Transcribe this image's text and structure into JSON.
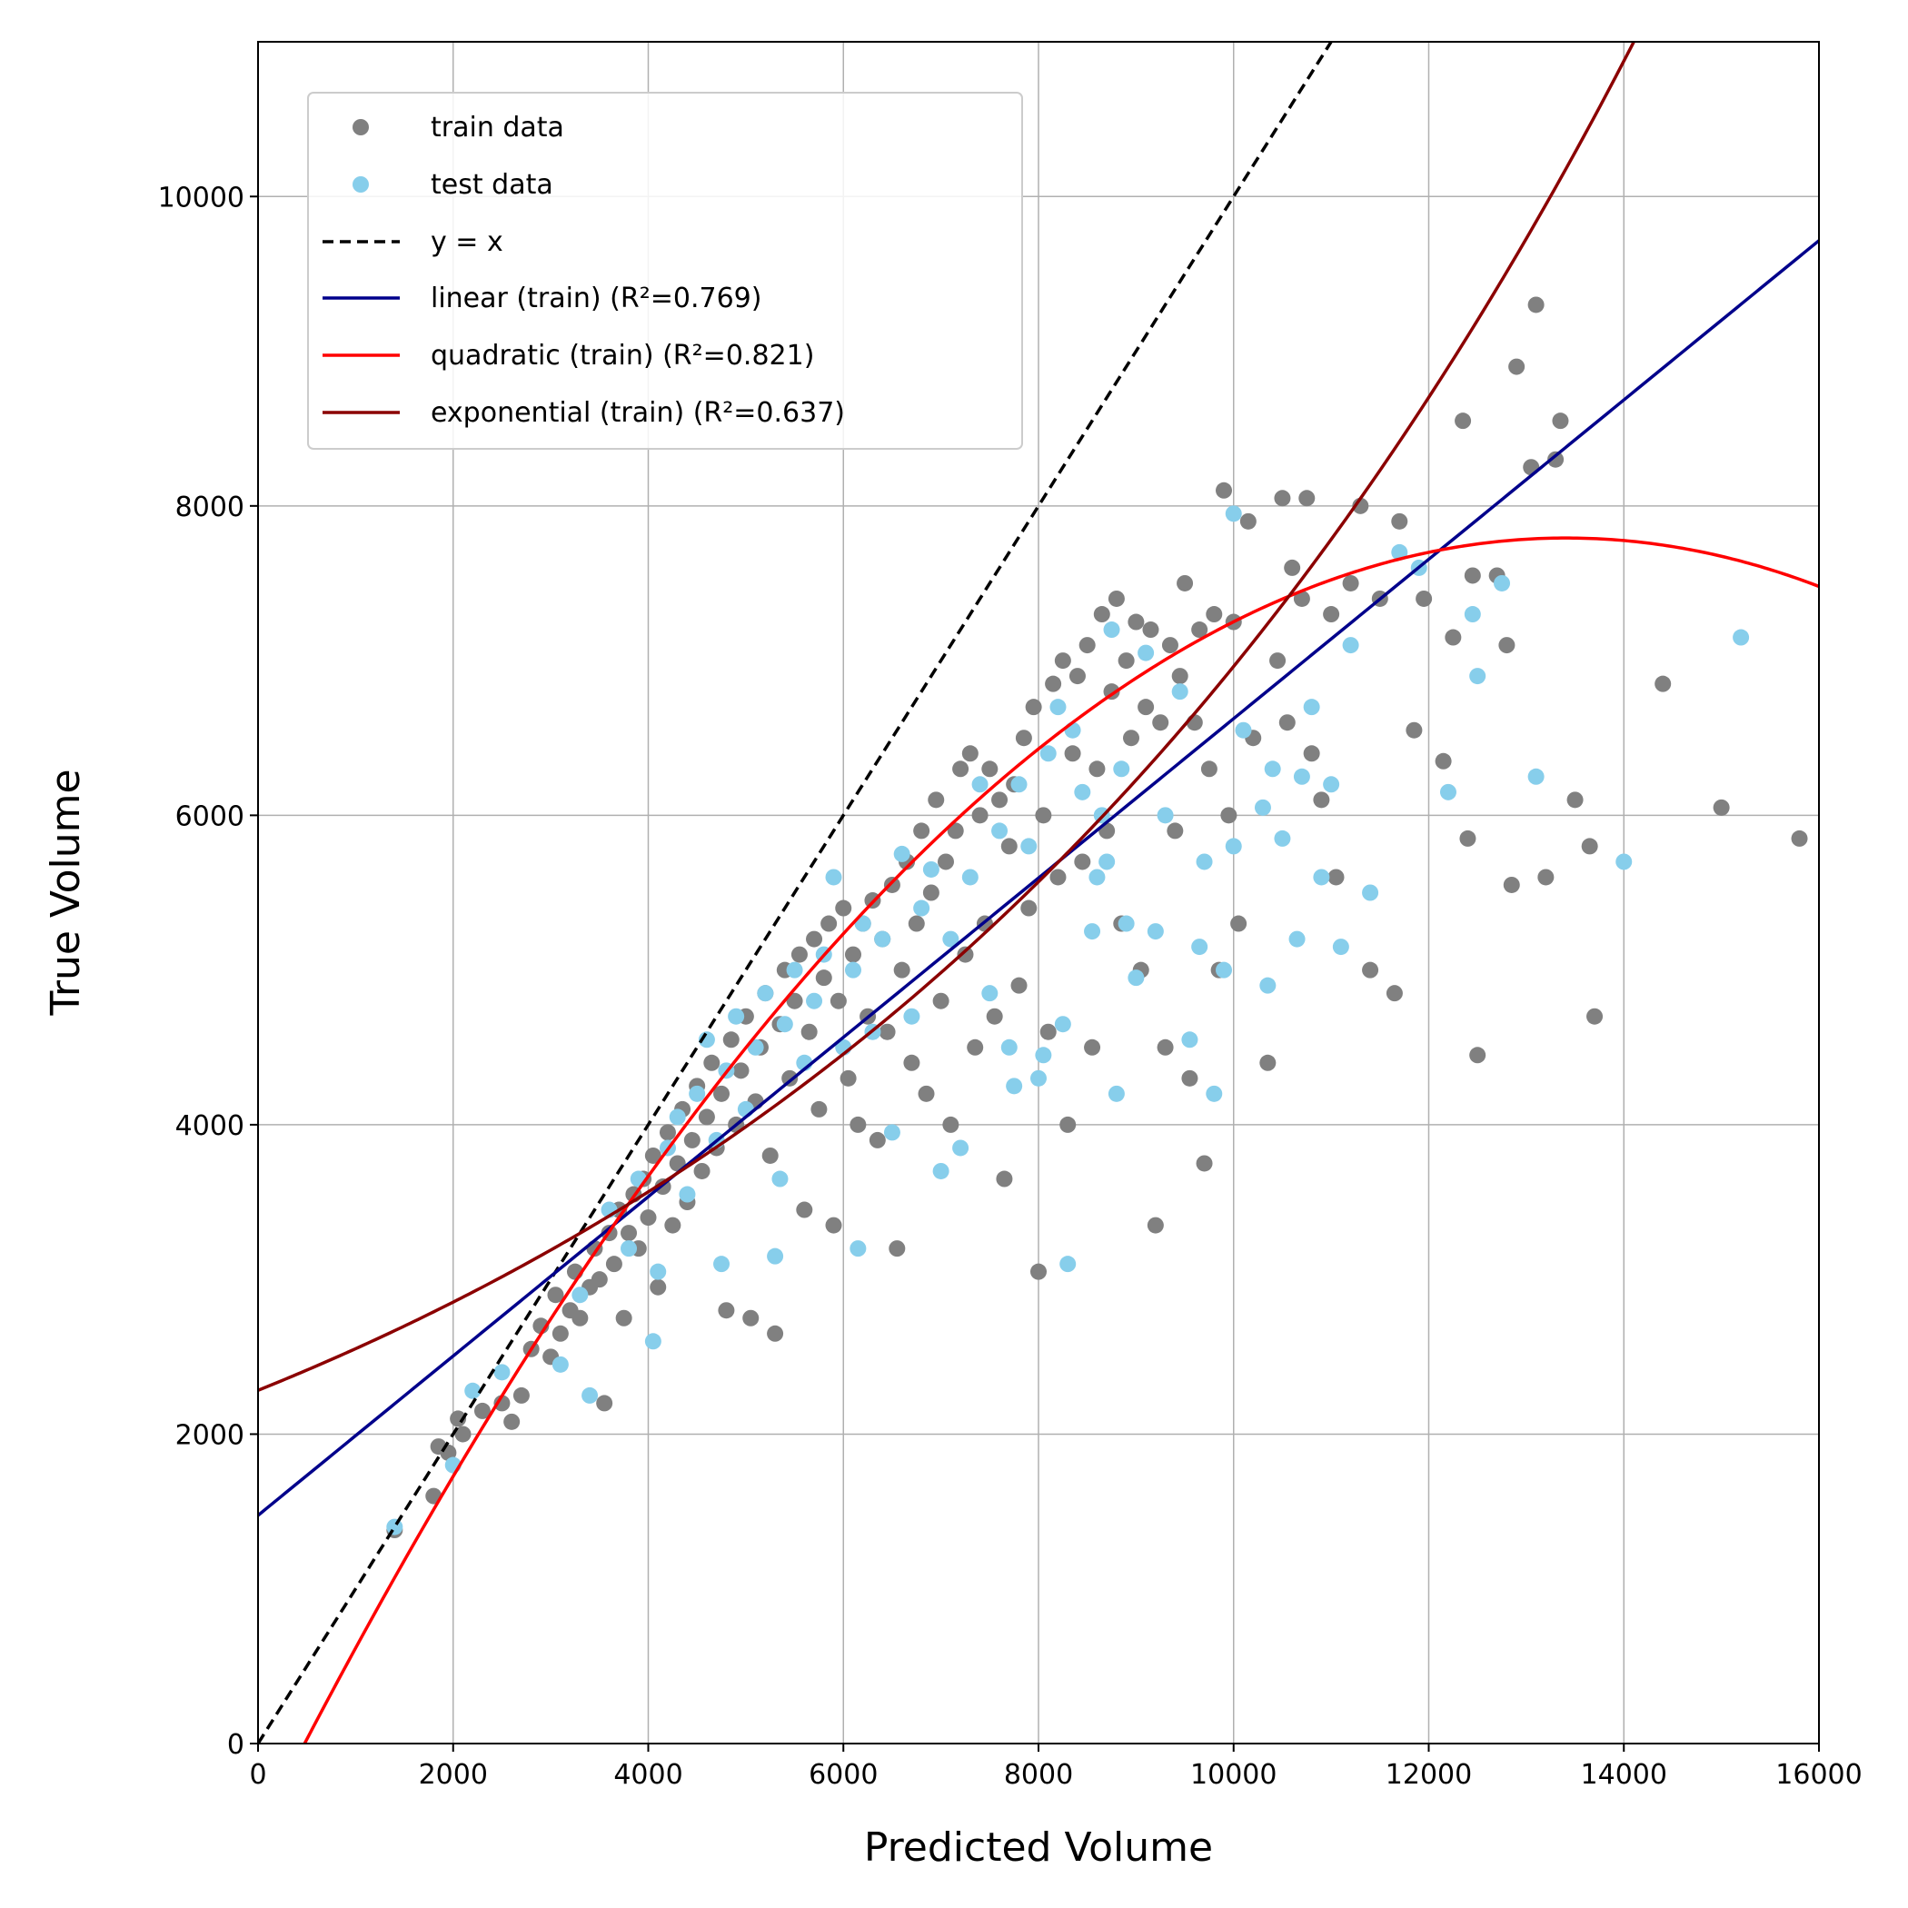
{
  "chart_data": {
    "type": "scatter",
    "xlabel": "Predicted Volume",
    "ylabel": "True Volume",
    "xlim": [
      0,
      16000
    ],
    "ylim": [
      0,
      11000
    ],
    "xticks": [
      "0",
      "2000",
      "4000",
      "6000",
      "8000",
      "10000",
      "12000",
      "14000",
      "16000"
    ],
    "yticks": [
      "0",
      "2000",
      "4000",
      "6000",
      "8000",
      "10000"
    ],
    "grid": true,
    "legend_position": "top-left",
    "legend": {
      "train": "train data",
      "test": "test data",
      "identity": "y = x",
      "linear": "linear (train) (R²=0.769)",
      "quadratic": "quadratic (train) (R²=0.821)",
      "exponential": "exponential (train) (R²=0.637)"
    },
    "colors": {
      "train": "#808080",
      "test": "#87ceeb",
      "identity": "#000000",
      "linear": "#00008b",
      "quadratic": "#ff0000",
      "exponential": "#8b0000",
      "grid": "#b0b0b0"
    },
    "fits": {
      "identity": {
        "slope": 1,
        "intercept": 0
      },
      "linear": {
        "slope": 0.515,
        "intercept": 1475
      },
      "quadratic": {
        "a": -4.66e-05,
        "b": 1.2497,
        "c": -586
      },
      "exponential": {
        "a": 2283,
        "k": 0.0001115
      }
    },
    "train_points": [
      [
        1400,
        1380
      ],
      [
        1800,
        1600
      ],
      [
        1850,
        1920
      ],
      [
        1950,
        1880
      ],
      [
        2050,
        2100
      ],
      [
        2100,
        2000
      ],
      [
        2300,
        2150
      ],
      [
        2500,
        2200
      ],
      [
        2600,
        2080
      ],
      [
        2700,
        2250
      ],
      [
        2800,
        2550
      ],
      [
        2900,
        2700
      ],
      [
        3000,
        2500
      ],
      [
        3050,
        2900
      ],
      [
        3100,
        2650
      ],
      [
        3200,
        2800
      ],
      [
        3250,
        3050
      ],
      [
        3300,
        2750
      ],
      [
        3400,
        2950
      ],
      [
        3450,
        3200
      ],
      [
        3500,
        3000
      ],
      [
        3550,
        2200
      ],
      [
        3600,
        3300
      ],
      [
        3650,
        3100
      ],
      [
        3700,
        3450
      ],
      [
        3750,
        2750
      ],
      [
        3800,
        3300
      ],
      [
        3850,
        3550
      ],
      [
        3900,
        3200
      ],
      [
        3950,
        3650
      ],
      [
        4000,
        3400
      ],
      [
        4050,
        3800
      ],
      [
        4100,
        2950
      ],
      [
        4150,
        3600
      ],
      [
        4200,
        3950
      ],
      [
        4250,
        3350
      ],
      [
        4300,
        3750
      ],
      [
        4350,
        4100
      ],
      [
        4400,
        3500
      ],
      [
        4450,
        3900
      ],
      [
        4500,
        4250
      ],
      [
        4550,
        3700
      ],
      [
        4600,
        4050
      ],
      [
        4650,
        4400
      ],
      [
        4700,
        3850
      ],
      [
        4750,
        4200
      ],
      [
        4800,
        2800
      ],
      [
        4850,
        4550
      ],
      [
        4900,
        4000
      ],
      [
        4950,
        4350
      ],
      [
        5000,
        4700
      ],
      [
        5050,
        2750
      ],
      [
        5100,
        4150
      ],
      [
        5150,
        4500
      ],
      [
        5200,
        4850
      ],
      [
        5250,
        3800
      ],
      [
        5300,
        2650
      ],
      [
        5350,
        4650
      ],
      [
        5400,
        5000
      ],
      [
        5450,
        4300
      ],
      [
        5500,
        4800
      ],
      [
        5550,
        5100
      ],
      [
        5600,
        3450
      ],
      [
        5650,
        4600
      ],
      [
        5700,
        5200
      ],
      [
        5750,
        4100
      ],
      [
        5800,
        4950
      ],
      [
        5850,
        5300
      ],
      [
        5900,
        3350
      ],
      [
        5950,
        4800
      ],
      [
        6000,
        5400
      ],
      [
        6050,
        4300
      ],
      [
        6100,
        5100
      ],
      [
        6150,
        4000
      ],
      [
        6200,
        5300
      ],
      [
        6250,
        4700
      ],
      [
        6300,
        5450
      ],
      [
        6350,
        3900
      ],
      [
        6400,
        5200
      ],
      [
        6450,
        4600
      ],
      [
        6500,
        5550
      ],
      [
        6550,
        3200
      ],
      [
        6600,
        5000
      ],
      [
        6650,
        5700
      ],
      [
        6700,
        4400
      ],
      [
        6750,
        5300
      ],
      [
        6800,
        5900
      ],
      [
        6850,
        4200
      ],
      [
        6900,
        5500
      ],
      [
        6950,
        6100
      ],
      [
        7000,
        4800
      ],
      [
        7050,
        5700
      ],
      [
        7100,
        4000
      ],
      [
        7150,
        5900
      ],
      [
        7200,
        6300
      ],
      [
        7250,
        5100
      ],
      [
        7300,
        6400
      ],
      [
        7350,
        4500
      ],
      [
        7400,
        6000
      ],
      [
        7450,
        5300
      ],
      [
        7500,
        6300
      ],
      [
        7550,
        4700
      ],
      [
        7600,
        6100
      ],
      [
        7650,
        3650
      ],
      [
        7700,
        5800
      ],
      [
        7750,
        6200
      ],
      [
        7800,
        4900
      ],
      [
        7850,
        6500
      ],
      [
        7900,
        5400
      ],
      [
        7950,
        6700
      ],
      [
        8000,
        3050
      ],
      [
        8050,
        6000
      ],
      [
        8100,
        4600
      ],
      [
        8150,
        6850
      ],
      [
        8200,
        5600
      ],
      [
        8250,
        7000
      ],
      [
        8300,
        4000
      ],
      [
        8350,
        6400
      ],
      [
        8400,
        6900
      ],
      [
        8450,
        5700
      ],
      [
        8500,
        7100
      ],
      [
        8550,
        4500
      ],
      [
        8600,
        6300
      ],
      [
        8650,
        7300
      ],
      [
        8700,
        5900
      ],
      [
        8750,
        6800
      ],
      [
        8800,
        7400
      ],
      [
        8850,
        5300
      ],
      [
        8900,
        7000
      ],
      [
        8950,
        6500
      ],
      [
        9000,
        7250
      ],
      [
        9050,
        5000
      ],
      [
        9100,
        6700
      ],
      [
        9150,
        7200
      ],
      [
        9200,
        3350
      ],
      [
        9250,
        6600
      ],
      [
        9300,
        4500
      ],
      [
        9350,
        7100
      ],
      [
        9400,
        5900
      ],
      [
        9450,
        6900
      ],
      [
        9500,
        7500
      ],
      [
        9550,
        4300
      ],
      [
        9600,
        6600
      ],
      [
        9650,
        7200
      ],
      [
        9700,
        3750
      ],
      [
        9750,
        6300
      ],
      [
        9800,
        7300
      ],
      [
        9850,
        5000
      ],
      [
        9900,
        8100
      ],
      [
        9950,
        6000
      ],
      [
        10000,
        7250
      ],
      [
        10050,
        5300
      ],
      [
        10150,
        7900
      ],
      [
        10200,
        6500
      ],
      [
        10350,
        4400
      ],
      [
        10450,
        7000
      ],
      [
        10500,
        8050
      ],
      [
        10550,
        6600
      ],
      [
        10600,
        7600
      ],
      [
        10700,
        7400
      ],
      [
        10750,
        8050
      ],
      [
        10800,
        6400
      ],
      [
        10900,
        6100
      ],
      [
        11000,
        7300
      ],
      [
        11050,
        5600
      ],
      [
        11200,
        7500
      ],
      [
        11300,
        8000
      ],
      [
        11400,
        5000
      ],
      [
        11500,
        7400
      ],
      [
        11650,
        4850
      ],
      [
        11700,
        7900
      ],
      [
        11850,
        6550
      ],
      [
        11950,
        7400
      ],
      [
        12150,
        6350
      ],
      [
        12250,
        7150
      ],
      [
        12350,
        8550
      ],
      [
        12400,
        5850
      ],
      [
        12450,
        7550
      ],
      [
        12500,
        4450
      ],
      [
        12700,
        7550
      ],
      [
        12800,
        7100
      ],
      [
        12850,
        5550
      ],
      [
        12900,
        8900
      ],
      [
        13050,
        8250
      ],
      [
        13100,
        9300
      ],
      [
        13200,
        5600
      ],
      [
        13300,
        8300
      ],
      [
        13350,
        8550
      ],
      [
        13500,
        6100
      ],
      [
        13650,
        5800
      ],
      [
        13700,
        4700
      ],
      [
        14400,
        6850
      ],
      [
        15000,
        6050
      ],
      [
        15800,
        5850
      ]
    ],
    "test_points": [
      [
        1400,
        1400
      ],
      [
        2000,
        1800
      ],
      [
        2200,
        2280
      ],
      [
        2500,
        2400
      ],
      [
        3100,
        2450
      ],
      [
        3300,
        2900
      ],
      [
        3400,
        2250
      ],
      [
        3600,
        3450
      ],
      [
        3800,
        3200
      ],
      [
        3900,
        3650
      ],
      [
        4050,
        2600
      ],
      [
        4100,
        3050
      ],
      [
        4200,
        3850
      ],
      [
        4300,
        4050
      ],
      [
        4400,
        3550
      ],
      [
        4500,
        4200
      ],
      [
        4600,
        4550
      ],
      [
        4700,
        3900
      ],
      [
        4750,
        3100
      ],
      [
        4800,
        4350
      ],
      [
        4900,
        4700
      ],
      [
        5000,
        4100
      ],
      [
        5100,
        4500
      ],
      [
        5200,
        4850
      ],
      [
        5300,
        3150
      ],
      [
        5350,
        3650
      ],
      [
        5400,
        4650
      ],
      [
        5500,
        5000
      ],
      [
        5600,
        4400
      ],
      [
        5700,
        4800
      ],
      [
        5800,
        5100
      ],
      [
        5900,
        5600
      ],
      [
        6000,
        4500
      ],
      [
        6100,
        5000
      ],
      [
        6150,
        3200
      ],
      [
        6200,
        5300
      ],
      [
        6300,
        4600
      ],
      [
        6400,
        5200
      ],
      [
        6500,
        3950
      ],
      [
        6600,
        5750
      ],
      [
        6700,
        4700
      ],
      [
        6800,
        5400
      ],
      [
        6900,
        5650
      ],
      [
        7000,
        3700
      ],
      [
        7100,
        5200
      ],
      [
        7200,
        3850
      ],
      [
        7300,
        5600
      ],
      [
        7400,
        6200
      ],
      [
        7500,
        4850
      ],
      [
        7600,
        5900
      ],
      [
        7700,
        4500
      ],
      [
        7750,
        4250
      ],
      [
        7800,
        6200
      ],
      [
        7900,
        5800
      ],
      [
        8000,
        4300
      ],
      [
        8050,
        4450
      ],
      [
        8100,
        6400
      ],
      [
        8200,
        6700
      ],
      [
        8250,
        4650
      ],
      [
        8300,
        3100
      ],
      [
        8350,
        6550
      ],
      [
        8450,
        6150
      ],
      [
        8550,
        5250
      ],
      [
        8600,
        5600
      ],
      [
        8650,
        6000
      ],
      [
        8700,
        5700
      ],
      [
        8750,
        7200
      ],
      [
        8800,
        4200
      ],
      [
        8850,
        6300
      ],
      [
        8900,
        5300
      ],
      [
        9000,
        4950
      ],
      [
        9100,
        7050
      ],
      [
        9200,
        5250
      ],
      [
        9300,
        6000
      ],
      [
        9450,
        6800
      ],
      [
        9550,
        4550
      ],
      [
        9650,
        5150
      ],
      [
        9700,
        5700
      ],
      [
        9800,
        4200
      ],
      [
        9900,
        5000
      ],
      [
        10000,
        7950
      ],
      [
        10000,
        5800
      ],
      [
        10100,
        6550
      ],
      [
        10300,
        6050
      ],
      [
        10350,
        4900
      ],
      [
        10400,
        6300
      ],
      [
        10500,
        5850
      ],
      [
        10650,
        5200
      ],
      [
        10700,
        6250
      ],
      [
        10800,
        6700
      ],
      [
        10900,
        5600
      ],
      [
        11000,
        6200
      ],
      [
        11100,
        5150
      ],
      [
        11200,
        7100
      ],
      [
        11400,
        5500
      ],
      [
        11700,
        7700
      ],
      [
        11900,
        7600
      ],
      [
        12200,
        6150
      ],
      [
        12450,
        7300
      ],
      [
        12500,
        6900
      ],
      [
        12750,
        7500
      ],
      [
        13100,
        6250
      ],
      [
        14000,
        5700
      ],
      [
        15200,
        7150
      ]
    ]
  }
}
